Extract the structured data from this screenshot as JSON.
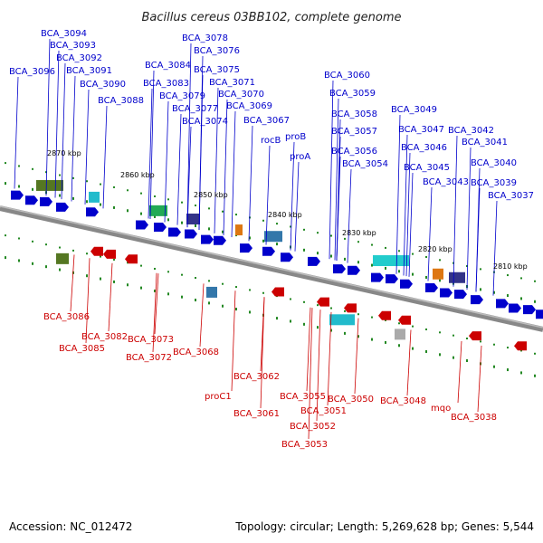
{
  "header": {
    "title": "Bacillus cereus 03BB102, complete genome"
  },
  "footer": {
    "accession": "Accession: NC_012472",
    "summary": "Topology: circular; Length: 5,269,628 bp; Genes: 5,544"
  },
  "colors": {
    "forward": "#0000cc",
    "reverse": "#cc0000",
    "backbone": "#888888",
    "tick": "#228822"
  },
  "scale_marks": [
    "2870 kbp",
    "2860 kbp",
    "2850 kbp",
    "2840 kbp",
    "2830 kbp",
    "2820 kbp",
    "2810 kbp"
  ],
  "forward_labels": [
    "BCA_3094",
    "BCA_3093",
    "BCA_3092",
    "BCA_3096",
    "BCA_3091",
    "BCA_3090",
    "BCA_3088",
    "BCA_3078",
    "BCA_3076",
    "BCA_3084",
    "BCA_3075",
    "BCA_3083",
    "BCA_3071",
    "BCA_3079",
    "BCA_3070",
    "BCA_3077",
    "BCA_3069",
    "BCA_3074",
    "BCA_3067",
    "rocB",
    "proB",
    "proA",
    "BCA_3060",
    "BCA_3059",
    "BCA_3058",
    "BCA_3057",
    "BCA_3056",
    "BCA_3054",
    "BCA_3049",
    "BCA_3047",
    "BCA_3046",
    "BCA_3045",
    "BCA_3043",
    "BCA_3042",
    "BCA_3041",
    "BCA_3040",
    "BCA_3039",
    "BCA_3037"
  ],
  "reverse_labels": [
    "BCA_3086",
    "BCA_3085",
    "BCA_3082",
    "BCA_3073",
    "BCA_3072",
    "BCA_3068",
    "proC1",
    "BCA_3062",
    "BCA_3061",
    "BCA_3055",
    "BCA_3051",
    "BCA_3052",
    "BCA_3053",
    "BCA_3050",
    "BCA_3048",
    "mqo",
    "BCA_3038"
  ]
}
